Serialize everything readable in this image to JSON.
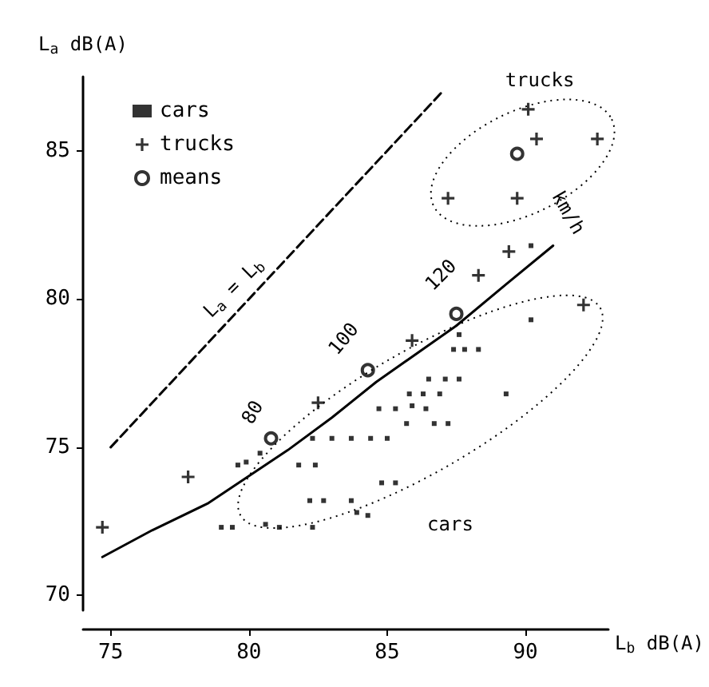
{
  "chart_data": {
    "type": "scatter",
    "xlabel": "L$_{b}$ dB(A)",
    "ylabel": "L$_{a}$ dB(A)",
    "xlim": [
      74,
      93
    ],
    "ylim": [
      69.5,
      87.5
    ],
    "xticks": [
      75,
      80,
      85,
      90
    ],
    "yticks": [
      70,
      75,
      80,
      85
    ],
    "grid": false,
    "legend": "top left",
    "series": [
      {
        "name": "cars",
        "color": "#000000",
        "marker": "square",
        "x": [
          79.0,
          79.4,
          80.6,
          81.1,
          82.3,
          82.2,
          82.7,
          83.7,
          83.9,
          84.3,
          84.8,
          85.3,
          81.8,
          82.4,
          79.6,
          79.9,
          80.4,
          82.3,
          83.0,
          83.7,
          84.4,
          85.0,
          84.7,
          85.3,
          85.9,
          86.4,
          85.7,
          86.7,
          87.2,
          85.8,
          86.3,
          86.9,
          86.5,
          87.1,
          87.6,
          87.4,
          87.8,
          88.3,
          87.6,
          89.3,
          90.2,
          90.2
        ],
        "values": [
          72.3,
          72.3,
          72.4,
          72.3,
          72.3,
          73.2,
          73.2,
          73.2,
          72.8,
          72.7,
          73.8,
          73.8,
          74.4,
          74.4,
          74.4,
          74.5,
          74.8,
          75.3,
          75.3,
          75.3,
          75.3,
          75.3,
          76.3,
          76.3,
          76.4,
          76.3,
          75.8,
          75.8,
          75.8,
          76.8,
          76.8,
          76.8,
          77.3,
          77.3,
          77.3,
          78.3,
          78.3,
          78.3,
          78.8,
          76.8,
          79.3,
          81.8
        ]
      },
      {
        "name": "trucks",
        "color": "#000000",
        "marker": "cross",
        "x": [
          74.7,
          77.8,
          82.5,
          85.9,
          88.3,
          89.4,
          92.1,
          90.1,
          90.4,
          89.7,
          87.2,
          92.6
        ],
        "values": [
          72.3,
          74.0,
          76.5,
          78.6,
          80.8,
          81.6,
          79.8,
          86.4,
          85.4,
          83.4,
          83.4,
          85.4
        ]
      },
      {
        "name": "means",
        "color": "#000000",
        "marker": "circle",
        "x": [
          80.8,
          84.3,
          87.5,
          89.7
        ],
        "values": [
          75.3,
          77.6,
          79.5,
          84.9
        ]
      },
      {
        "type": "line",
        "color": "#000000",
        "marker": "none",
        "line_style": "solid",
        "x": [
          74.7,
          76.5,
          78.5,
          81.4,
          83.0,
          84.6,
          87.5,
          89.3,
          91.0
        ],
        "values": [
          71.3,
          72.2,
          73.1,
          74.9,
          76.0,
          77.2,
          79.1,
          80.5,
          81.8
        ]
      },
      {
        "type": "line",
        "color": "#000000",
        "marker": "none",
        "line_style": "dashed",
        "x": [
          75,
          87
        ],
        "values": [
          75,
          87
        ]
      }
    ],
    "annotations": [
      "L$_{a}$ = L$_{b}$",
      "80",
      "100",
      "120",
      "km/h",
      "trucks",
      "cars"
    ]
  }
}
